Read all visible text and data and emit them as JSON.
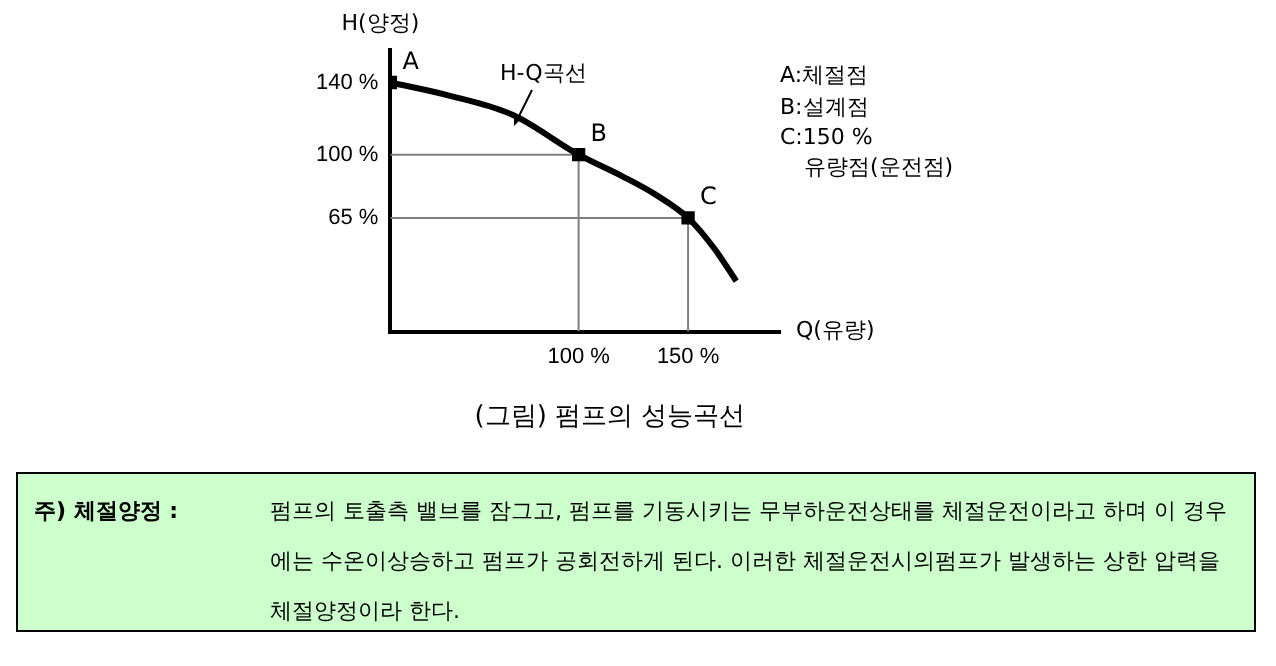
{
  "chart_data": {
    "type": "line",
    "xlabel": "Q(유량)",
    "ylabel": "H(양정)",
    "xlim": [
      14,
      192
    ],
    "ylim": [
      2,
      158
    ],
    "xticks": [
      {
        "value": 100,
        "label": "100 %"
      },
      {
        "value": 150,
        "label": "150 %"
      }
    ],
    "yticks": [
      {
        "value": 65,
        "label": "65 %"
      },
      {
        "value": 100,
        "label": "100 %"
      },
      {
        "value": 140,
        "label": "140 %"
      }
    ],
    "grid": false,
    "legend": false,
    "series": [
      {
        "color": "#000000",
        "marker": "none",
        "x": [
          14,
          40,
          70,
          100,
          120,
          135,
          150,
          162,
          172
        ],
        "values": [
          140,
          133,
          122,
          100,
          88,
          78,
          65,
          48,
          30
        ]
      },
      {
        "color": "#808080",
        "marker": "none",
        "x": [
          100,
          100,
          14
        ],
        "values": [
          2,
          100,
          100
        ]
      },
      {
        "color": "#808080",
        "marker": "none",
        "x": [
          150,
          150,
          14
        ],
        "values": [
          2,
          65,
          65
        ]
      },
      {
        "type": "scatter",
        "color": "#000000",
        "marker": "square",
        "x": [
          14,
          100,
          150
        ],
        "values": [
          140,
          100,
          65
        ]
      }
    ],
    "annotations": [
      {
        "text": "A",
        "x": 14,
        "y": 140
      },
      {
        "text": "B",
        "x": 100,
        "y": 100
      },
      {
        "text": "C",
        "x": 150,
        "y": 65
      },
      "H-Q곡선",
      "A:체절점",
      "B:설계점",
      "C:150 %",
      "유량점(운전점)",
      "(그림) 펌프의 성능곡선",
      "주) 체절양정 :",
      "펌프의 토출측 밸브를 잠그고, 펌프를 기동시키는 무부하운전상태를 체절운전이라고 하며 이 경우에는 수온이상승하고 펌프가 공회전하게 된다. 이러한 체절운전시의펌프가 발생하는 상한 압력을 체절양정이라 한다."
    ]
  }
}
